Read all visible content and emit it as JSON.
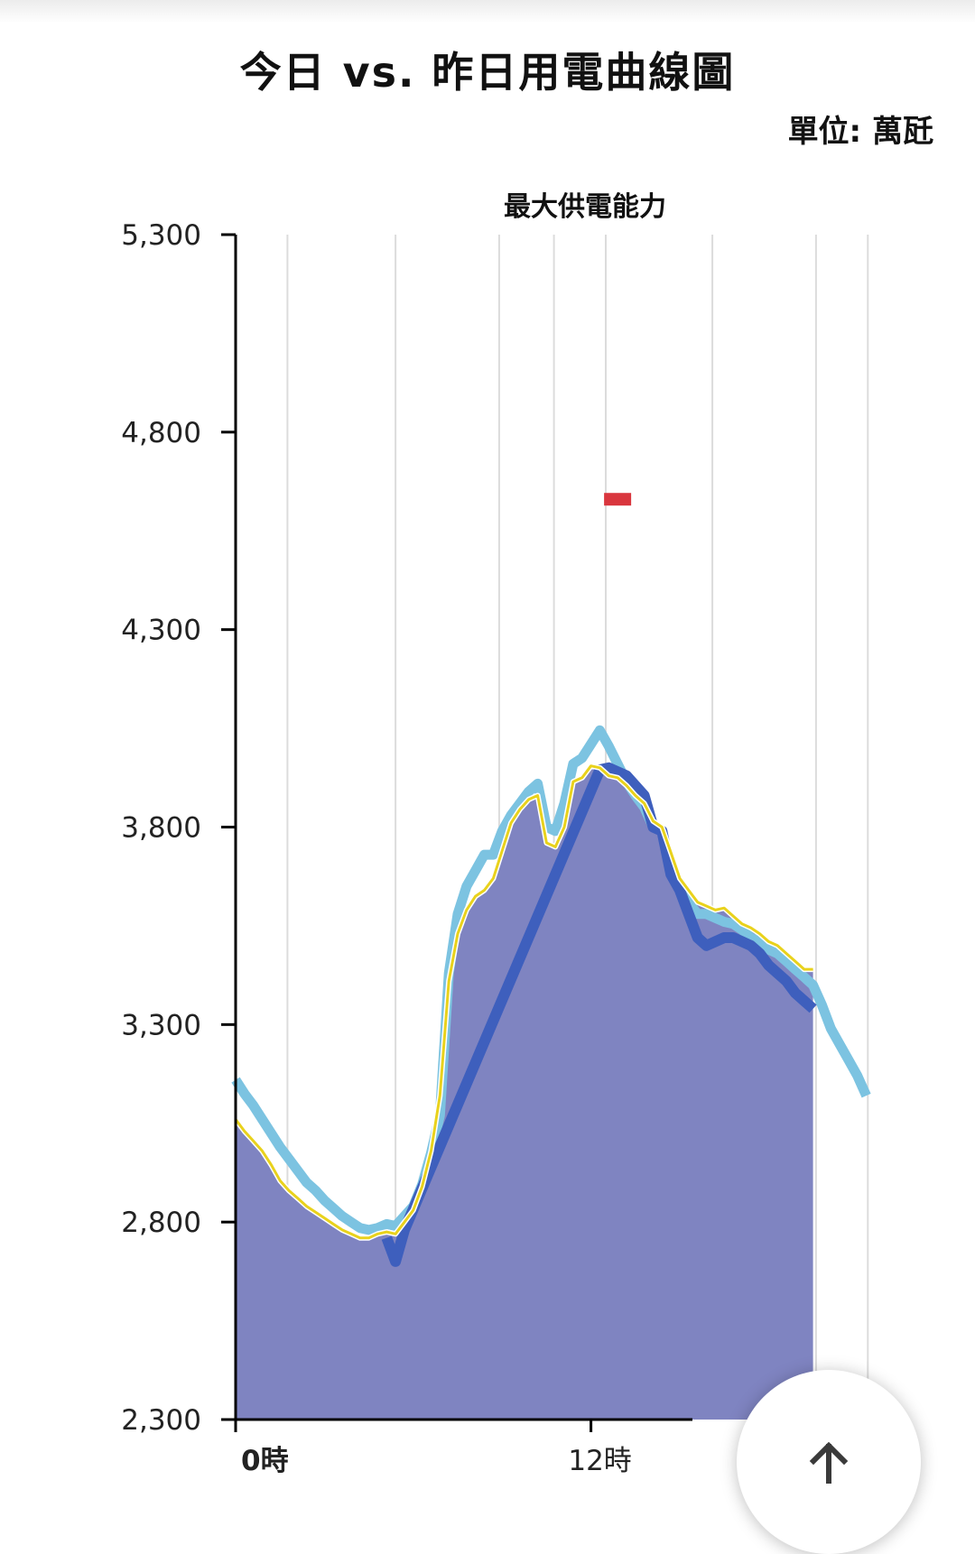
{
  "header": {
    "title": "今日 vs. 昨日用電曲線圖",
    "unit": "單位: 萬瓩"
  },
  "fab": {
    "icon": "arrow-up-icon"
  },
  "colors": {
    "today_fill": "#7f84c1",
    "today_edge": "#e9d21c",
    "yesterday_line": "#7cc3e1",
    "forecast_line": "#3e5fbd",
    "capacity_marker": "#d9363e"
  },
  "chart_data": {
    "type": "area",
    "title": "",
    "xlabel": "",
    "ylabel": "",
    "ylim": [
      2300,
      5300
    ],
    "yticks": [
      {
        "value": 2300,
        "label": "2,300"
      },
      {
        "value": 2800,
        "label": "2,800"
      },
      {
        "value": 3300,
        "label": "3,300"
      },
      {
        "value": 3800,
        "label": "3,800"
      },
      {
        "value": 4300,
        "label": "4,300"
      },
      {
        "value": 4800,
        "label": "4,800"
      },
      {
        "value": 5300,
        "label": "5,300"
      }
    ],
    "xlim": [
      0,
      24
    ],
    "xticks": [
      {
        "hour": 0,
        "label": "0時"
      },
      {
        "hour": 12,
        "label": "12時"
      }
    ],
    "grid_hours": [
      1.75,
      5.4,
      8.9,
      10.75,
      12.5,
      16.1,
      19.6,
      21.35
    ],
    "series": [
      {
        "name": "",
        "role": "today",
        "x": [
          0,
          0.3,
          0.6,
          0.9,
          1.2,
          1.5,
          1.8,
          2.1,
          2.4,
          2.7,
          3.0,
          3.3,
          3.6,
          3.9,
          4.2,
          4.5,
          4.8,
          5.1,
          5.4,
          5.7,
          6.0,
          6.3,
          6.6,
          6.9,
          7.2,
          7.5,
          7.8,
          8.1,
          8.4,
          8.7,
          9.0,
          9.3,
          9.6,
          9.9,
          10.2,
          10.5,
          10.8,
          11.1,
          11.4,
          11.7,
          12.0,
          12.3,
          12.6,
          12.9,
          13.2,
          13.5,
          13.8,
          14.1,
          14.4,
          14.7,
          15.0,
          15.3,
          15.6,
          15.9,
          16.2,
          16.5,
          16.8,
          17.1,
          17.4,
          17.7,
          18.0,
          18.3,
          18.6,
          18.9,
          19.2,
          19.5
        ],
        "values": [
          3060,
          3030,
          3005,
          2980,
          2945,
          2905,
          2880,
          2860,
          2840,
          2825,
          2810,
          2795,
          2780,
          2770,
          2760,
          2760,
          2770,
          2775,
          2770,
          2800,
          2830,
          2890,
          2980,
          3120,
          3410,
          3530,
          3590,
          3625,
          3640,
          3670,
          3740,
          3810,
          3845,
          3870,
          3880,
          3760,
          3750,
          3800,
          3915,
          3925,
          3955,
          3950,
          3930,
          3925,
          3905,
          3880,
          3860,
          3815,
          3800,
          3735,
          3670,
          3640,
          3610,
          3600,
          3590,
          3595,
          3575,
          3555,
          3545,
          3530,
          3510,
          3500,
          3480,
          3460,
          3440,
          3440
        ]
      },
      {
        "name": "",
        "role": "yesterday",
        "x": [
          0,
          0.3,
          0.6,
          0.9,
          1.2,
          1.5,
          1.8,
          2.1,
          2.4,
          2.7,
          3.0,
          3.3,
          3.6,
          3.9,
          4.2,
          4.5,
          4.8,
          5.1,
          5.4,
          5.7,
          6.0,
          6.3,
          6.6,
          6.9,
          7.2,
          7.5,
          7.8,
          8.1,
          8.4,
          8.7,
          9.0,
          9.3,
          9.6,
          9.9,
          10.2,
          10.5,
          10.8,
          11.1,
          11.4,
          11.7,
          12.0,
          12.3,
          12.6,
          12.9,
          13.2,
          13.5,
          13.8,
          14.1,
          14.4,
          14.7,
          15.0,
          15.3,
          15.6,
          15.9,
          16.2,
          16.5,
          16.8,
          17.1,
          17.4,
          17.7,
          18.0,
          18.3,
          18.6,
          18.9,
          19.2,
          19.5,
          19.8,
          20.1,
          20.4,
          20.7,
          21.0,
          21.3
        ],
        "values": [
          3160,
          3125,
          3095,
          3060,
          3025,
          2990,
          2960,
          2930,
          2900,
          2880,
          2855,
          2835,
          2815,
          2800,
          2785,
          2780,
          2785,
          2795,
          2790,
          2815,
          2840,
          2895,
          2975,
          3070,
          3430,
          3580,
          3650,
          3690,
          3730,
          3730,
          3790,
          3830,
          3860,
          3890,
          3910,
          3800,
          3790,
          3860,
          3960,
          3975,
          4010,
          4045,
          4005,
          3960,
          3915,
          3880,
          3850,
          3800,
          3790,
          3700,
          3640,
          3610,
          3580,
          3580,
          3570,
          3560,
          3555,
          3540,
          3520,
          3510,
          3490,
          3480,
          3460,
          3440,
          3420,
          3400,
          3350,
          3290,
          3250,
          3210,
          3170,
          3120
        ]
      },
      {
        "name": "",
        "role": "forecast",
        "x": [
          5.1,
          5.4,
          5.7,
          12.3,
          12.6,
          13.2,
          13.8,
          14.1,
          14.4,
          14.7,
          15.0,
          15.3,
          15.6,
          15.9,
          16.2,
          16.5,
          16.8,
          17.1,
          17.4,
          17.7,
          18.0,
          18.3,
          18.6,
          18.9,
          19.2,
          19.5
        ],
        "values": [
          2760,
          2700,
          2780,
          3945,
          3950,
          3930,
          3880,
          3800,
          3790,
          3680,
          3640,
          3580,
          3520,
          3500,
          3510,
          3520,
          3520,
          3510,
          3500,
          3480,
          3450,
          3430,
          3410,
          3380,
          3360,
          3340
        ]
      }
    ],
    "capacity": {
      "label": "最大供電能力",
      "hour": 12.9,
      "value": 4630
    }
  }
}
